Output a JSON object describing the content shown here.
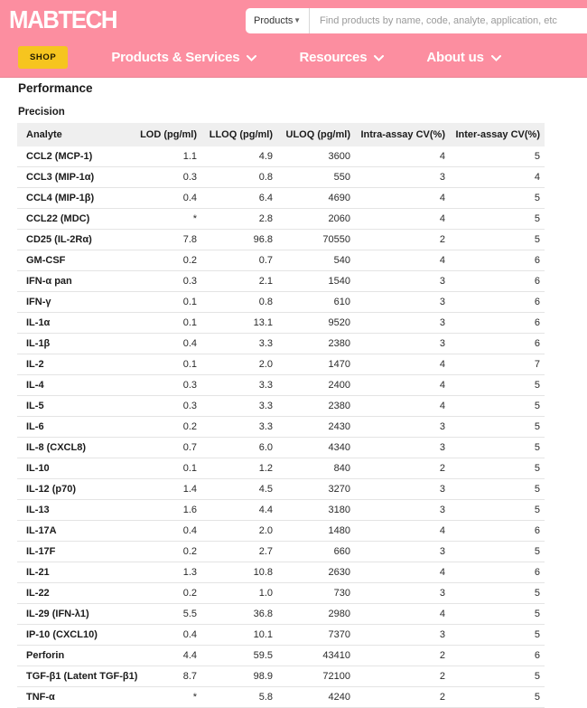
{
  "theme": {
    "header_pink": "#FC8EA0",
    "shop_yellow": "#F6C51F",
    "table_header_bg": "#EFEFEF",
    "row_border": "#E4E4E4"
  },
  "header": {
    "logo_text": "MABTECH",
    "search": {
      "category": "Products",
      "placeholder": "Find products by name, code, analyte, application, etc"
    },
    "shop_label": "SHOP",
    "nav": [
      {
        "label": "Products & Services"
      },
      {
        "label": "Resources"
      },
      {
        "label": "About us"
      }
    ]
  },
  "page": {
    "title": "Performance",
    "section": "Precision"
  },
  "table": {
    "columns": [
      "Analyte",
      "LOD (pg/ml)",
      "LLOQ (pg/ml)",
      "ULOQ (pg/ml)",
      "Intra-assay CV(%)",
      "Inter-assay CV(%)"
    ],
    "rows": [
      [
        "CCL2 (MCP-1)",
        "1.1",
        "4.9",
        "3600",
        "4",
        "5"
      ],
      [
        "CCL3 (MIP-1α)",
        "0.3",
        "0.8",
        "550",
        "3",
        "4"
      ],
      [
        "CCL4 (MIP-1β)",
        "0.4",
        "6.4",
        "4690",
        "4",
        "5"
      ],
      [
        "CCL22 (MDC)",
        "*",
        "2.8",
        "2060",
        "4",
        "5"
      ],
      [
        "CD25 (IL-2Rα)",
        "7.8",
        "96.8",
        "70550",
        "2",
        "5"
      ],
      [
        "GM-CSF",
        "0.2",
        "0.7",
        "540",
        "4",
        "6"
      ],
      [
        "IFN-α pan",
        "0.3",
        "2.1",
        "1540",
        "3",
        "6"
      ],
      [
        "IFN-γ",
        "0.1",
        "0.8",
        "610",
        "3",
        "6"
      ],
      [
        "IL-1α",
        "0.1",
        "13.1",
        "9520",
        "3",
        "6"
      ],
      [
        "IL-1β",
        "0.4",
        "3.3",
        "2380",
        "3",
        "6"
      ],
      [
        "IL-2",
        "0.1",
        "2.0",
        "1470",
        "4",
        "7"
      ],
      [
        "IL-4",
        "0.3",
        "3.3",
        "2400",
        "4",
        "5"
      ],
      [
        "IL-5",
        "0.3",
        "3.3",
        "2380",
        "4",
        "5"
      ],
      [
        "IL-6",
        "0.2",
        "3.3",
        "2430",
        "3",
        "5"
      ],
      [
        "IL-8 (CXCL8)",
        "0.7",
        "6.0",
        "4340",
        "3",
        "5"
      ],
      [
        "IL-10",
        "0.1",
        "1.2",
        "840",
        "2",
        "5"
      ],
      [
        "IL-12 (p70)",
        "1.4",
        "4.5",
        "3270",
        "3",
        "5"
      ],
      [
        "IL-13",
        "1.6",
        "4.4",
        "3180",
        "3",
        "5"
      ],
      [
        "IL-17A",
        "0.4",
        "2.0",
        "1480",
        "4",
        "6"
      ],
      [
        "IL-17F",
        "0.2",
        "2.7",
        "660",
        "3",
        "5"
      ],
      [
        "IL-21",
        "1.3",
        "10.8",
        "2630",
        "4",
        "6"
      ],
      [
        "IL-22",
        "0.2",
        "1.0",
        "730",
        "3",
        "5"
      ],
      [
        "IL-29 (IFN-λ1)",
        "5.5",
        "36.8",
        "2980",
        "4",
        "5"
      ],
      [
        "IP-10 (CXCL10)",
        "0.4",
        "10.1",
        "7370",
        "3",
        "5"
      ],
      [
        "Perforin",
        "4.4",
        "59.5",
        "43410",
        "2",
        "6"
      ],
      [
        "TGF-β1 (Latent TGF-β1)",
        "8.7",
        "98.9",
        "72100",
        "2",
        "5"
      ],
      [
        "TNF-α",
        "*",
        "5.8",
        "4240",
        "2",
        "5"
      ]
    ]
  }
}
